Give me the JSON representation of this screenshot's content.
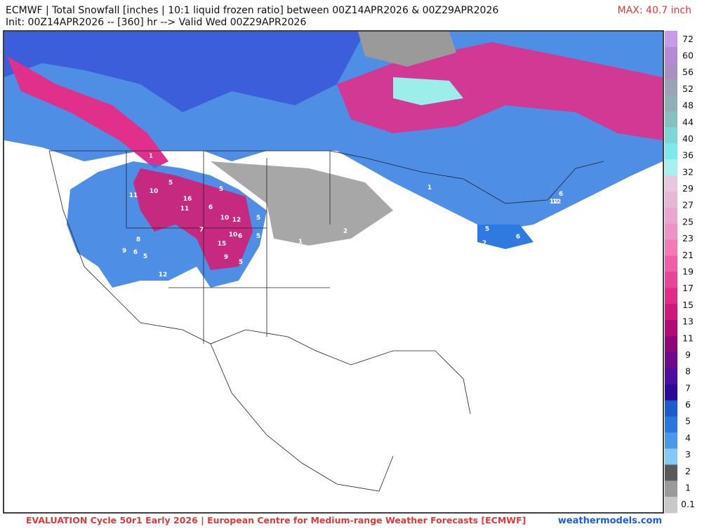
{
  "header": {
    "line1": "ECMWF | Total Snowfall [inches | 10:1 liquid frozen ratio] between 00Z14APR2026 & 00Z29APR2026",
    "line2": "Init: 00Z14APR2026 -- [360] hr --> Valid Wed 00Z29APR2026",
    "max": "MAX: 40.7 inch"
  },
  "colorbar": {
    "labels": [
      72,
      60,
      56,
      52,
      48,
      44,
      40,
      36,
      32,
      29,
      27,
      25,
      23,
      21,
      19,
      17,
      15,
      13,
      11,
      9,
      8,
      7,
      6,
      5,
      4,
      3,
      2,
      1,
      0.1
    ],
    "colors": [
      "#c79be8",
      "#b48ad6",
      "#a98fc4",
      "#9aa3b8",
      "#8fb0b4",
      "#86c0c0",
      "#7fd6d6",
      "#7aeaea",
      "#a8f0ee",
      "#e8c8dc",
      "#e6b8d4",
      "#eaa6cc",
      "#ee94c4",
      "#f27ab6",
      "#ee5fa8",
      "#e8449a",
      "#e02c88",
      "#d0187a",
      "#b00c74",
      "#8c087a",
      "#6c0a8c",
      "#4c0ea0",
      "#2a0a96",
      "#1a5ccc",
      "#2a78de",
      "#4a98ea",
      "#88c8f4",
      "#5a5a5a",
      "#9a9a9a",
      "#c8c8c8"
    ]
  },
  "map_labels": [
    1,
    5,
    10,
    11,
    16,
    11,
    6,
    5,
    10,
    12,
    5,
    7,
    10,
    6,
    5,
    15,
    9,
    5,
    12,
    8,
    6,
    9,
    5,
    12,
    1,
    2,
    1,
    1,
    5,
    6,
    2,
    6,
    12
  ],
  "footer": {
    "credit": "EVALUATION Cycle 50r1 Early 2026 | European Centre for Medium-range Weather Forecasts [ECMWF]",
    "site": "weathermodels.com"
  }
}
